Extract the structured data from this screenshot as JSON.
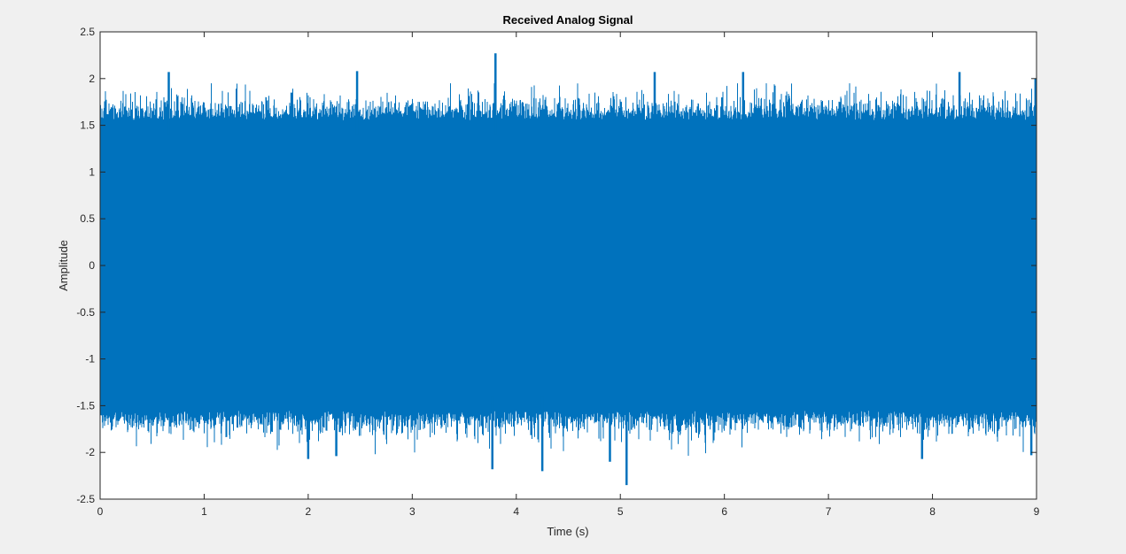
{
  "chart_data": {
    "type": "line",
    "title": "Received Analog Signal",
    "xlabel": "Time (s)",
    "ylabel": "Amplitude",
    "xlim": [
      0,
      9
    ],
    "ylim": [
      -2.5,
      2.5
    ],
    "x_ticks": [
      0,
      1,
      2,
      3,
      4,
      5,
      6,
      7,
      8,
      9
    ],
    "x_tick_labels": [
      "0",
      "1",
      "2",
      "3",
      "4",
      "5",
      "6",
      "7",
      "8",
      "9"
    ],
    "y_ticks": [
      -2.5,
      -2,
      -1.5,
      -1,
      -0.5,
      0,
      0.5,
      1,
      1.5,
      2,
      2.5
    ],
    "y_tick_labels": [
      "-2.5",
      "-2",
      "-1.5",
      "-1",
      "-0.5",
      "0",
      "0.5",
      "1",
      "1.5",
      "2",
      "2.5"
    ],
    "grid": false,
    "legend": "none",
    "series": [
      {
        "color": "#0072bd",
        "description": "dense noisy signal filling roughly -1.6 to 1.6",
        "typical_range": [
          -1.6,
          1.6
        ],
        "peaks": [
          {
            "x": 0.66,
            "y": 2.07
          },
          {
            "x": 1.84,
            "y": 1.85
          },
          {
            "x": 2.47,
            "y": 2.08
          },
          {
            "x": 3.8,
            "y": 2.27
          },
          {
            "x": 5.33,
            "y": 2.07
          },
          {
            "x": 6.18,
            "y": 2.07
          },
          {
            "x": 8.26,
            "y": 2.07
          },
          {
            "x": 8.99,
            "y": 2.0
          }
        ],
        "troughs": [
          {
            "x": 2.0,
            "y": -2.07
          },
          {
            "x": 2.27,
            "y": -2.04
          },
          {
            "x": 3.77,
            "y": -2.18
          },
          {
            "x": 4.25,
            "y": -2.2
          },
          {
            "x": 4.9,
            "y": -2.1
          },
          {
            "x": 5.06,
            "y": -2.35
          },
          {
            "x": 7.9,
            "y": -2.07
          },
          {
            "x": 8.95,
            "y": -2.03
          }
        ]
      }
    ]
  },
  "colors": {
    "figure_background": "#f0f0f0",
    "axes_background": "#ffffff",
    "axes_edge": "#262626",
    "series": "#0072bd"
  }
}
